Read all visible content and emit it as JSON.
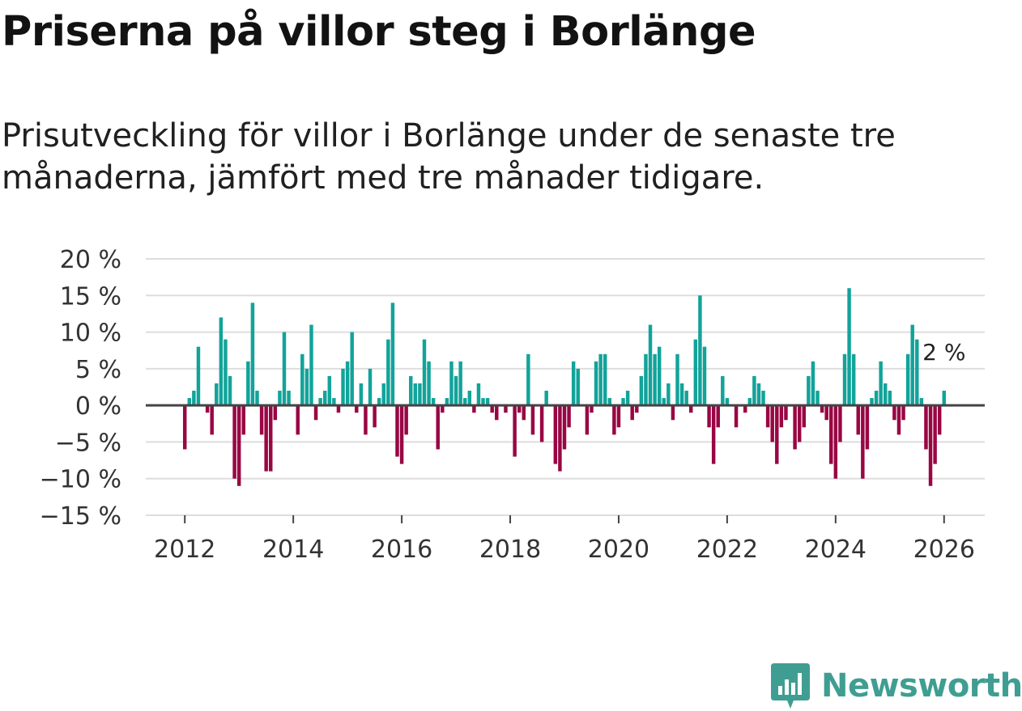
{
  "title": "Priserna på villor steg i Borlänge",
  "subtitle": "Prisutveckling för villor i Borlänge under de senaste tre månaderna, jämfört med tre månader tidigare.",
  "brand": {
    "name": "Newsworthy",
    "icon": "bar-chart-logo-icon"
  },
  "colors": {
    "positive": "#12a39a",
    "negative": "#990644",
    "grid": "#dddddd",
    "zero": "#444444",
    "text": "#333333"
  },
  "chart_data": {
    "type": "bar",
    "title": "Priserna på villor steg i Borlänge",
    "xlabel": "",
    "ylabel": "",
    "ylim": [
      -15,
      20
    ],
    "xlim": [
      2011.28,
      2026.75
    ],
    "y_ticks": [
      20,
      15,
      10,
      5,
      0,
      -5,
      -10,
      -15
    ],
    "y_tick_labels": [
      "20 %",
      "15 %",
      "10 %",
      "5 %",
      "0 %",
      "−5 %",
      "−10 %",
      "−15 %"
    ],
    "x_ticks": [
      2012,
      2014,
      2016,
      2018,
      2020,
      2022,
      2024,
      2026
    ],
    "x_tick_labels": [
      "2012",
      "2014",
      "2016",
      "2018",
      "2020",
      "2022",
      "2024",
      "2026"
    ],
    "grid": true,
    "start_year": 2012,
    "start_month": 1,
    "frequency": "monthly",
    "last_label": "2 %",
    "values": [
      -6,
      1,
      2,
      8,
      0,
      -1,
      -4,
      3,
      12,
      9,
      4,
      -10,
      -11,
      -4,
      6,
      14,
      2,
      -4,
      -9,
      -9,
      -2,
      2,
      10,
      2,
      0,
      -4,
      7,
      5,
      11,
      -2,
      1,
      2,
      4,
      1,
      -1,
      5,
      6,
      10,
      -1,
      3,
      -4,
      5,
      -3,
      1,
      3,
      9,
      14,
      -7,
      -8,
      -4,
      4,
      3,
      3,
      9,
      6,
      1,
      -6,
      -1,
      1,
      6,
      4,
      6,
      1,
      2,
      -1,
      3,
      1,
      1,
      -1,
      -2,
      0,
      -1,
      0,
      -7,
      -1,
      -2,
      7,
      -4,
      0,
      -5,
      2,
      0,
      -8,
      -9,
      -6,
      -3,
      6,
      5,
      0,
      -4,
      -1,
      6,
      7,
      7,
      1,
      -4,
      -3,
      1,
      2,
      -2,
      -1,
      4,
      7,
      11,
      7,
      8,
      1,
      3,
      -2,
      7,
      3,
      2,
      -1,
      9,
      15,
      8,
      -3,
      -8,
      -3,
      4,
      1,
      0,
      -3,
      0,
      -1,
      1,
      4,
      3,
      2,
      -3,
      -5,
      -8,
      -3,
      -2,
      0,
      -6,
      -5,
      -3,
      4,
      6,
      2,
      -1,
      -2,
      -8,
      -10,
      -5,
      7,
      16,
      7,
      -4,
      -10,
      -6,
      1,
      2,
      6,
      3,
      2,
      -2,
      -4,
      -2,
      7,
      11,
      9,
      1,
      -6,
      -11,
      -8,
      -4,
      2
    ]
  }
}
